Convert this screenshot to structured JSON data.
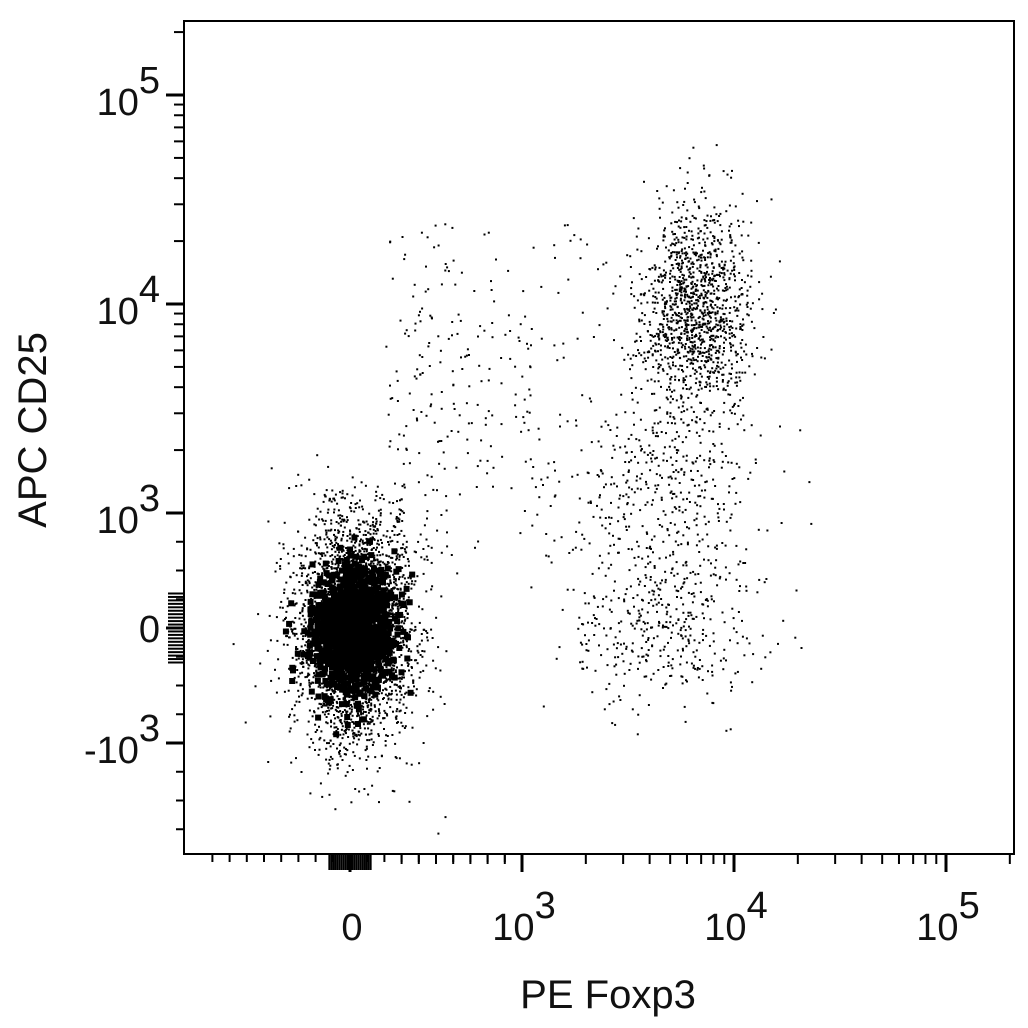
{
  "chart_data": {
    "type": "scatter",
    "xlabel": "PE  Foxp3",
    "ylabel": "APC CD25",
    "x_scale": "biexponential",
    "y_scale": "biexponential",
    "xlim": [
      -800,
      130000
    ],
    "ylim": [
      -2500,
      200000
    ],
    "x_ticks": [
      {
        "value": 0,
        "base": "0",
        "exp": ""
      },
      {
        "value": 1000,
        "base": "10",
        "exp": "3"
      },
      {
        "value": 10000,
        "base": "10",
        "exp": "4"
      },
      {
        "value": 100000,
        "base": "10",
        "exp": "5"
      }
    ],
    "y_ticks": [
      {
        "value": -1000,
        "base": "-10",
        "exp": "3"
      },
      {
        "value": 0,
        "base": "0",
        "exp": ""
      },
      {
        "value": 1000,
        "base": "10",
        "exp": "3"
      },
      {
        "value": 10000,
        "base": "10",
        "exp": "4"
      },
      {
        "value": 100000,
        "base": "10",
        "exp": "5"
      }
    ],
    "populations": [
      {
        "name_visible": false,
        "description": "Foxp3- CD25- cells",
        "x_center": 20,
        "y_center": 0,
        "x_spread": 160,
        "y_spread": 480,
        "relative_density": "very high"
      },
      {
        "name_visible": false,
        "description": "Foxp3+ CD25+ cells",
        "x_center": 6500,
        "y_center": 9500,
        "x_spread": "0.6-1.3 x",
        "y_spread": "0.5-2 x",
        "relative_density": "medium"
      },
      {
        "name_visible": false,
        "description": "Foxp3+ CD25 low/intermediate cells",
        "x_center": 5000,
        "y_center": 600,
        "x_spread": "0.5-1.5 x",
        "y_spread": "-400 to 2500",
        "relative_density": "low"
      }
    ],
    "grid": false,
    "legend": "none",
    "colors": {
      "points": "#000000",
      "axes": "#000000",
      "background": "#ffffff"
    }
  }
}
